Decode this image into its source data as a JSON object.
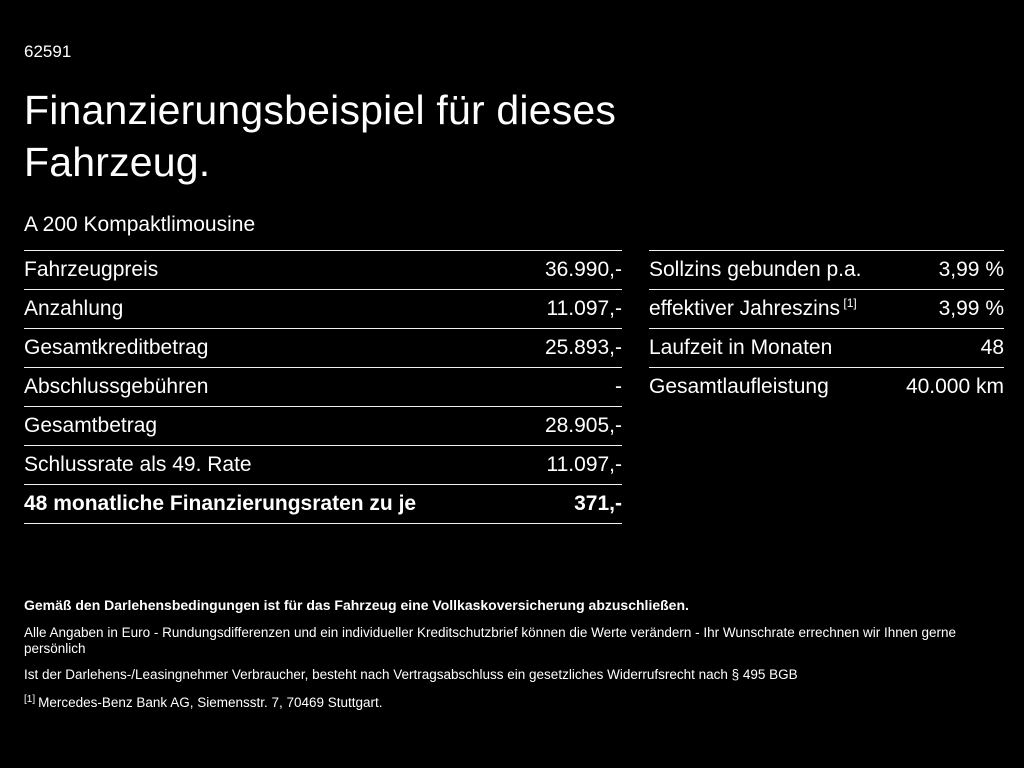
{
  "page": {
    "vehicle_id": "62591",
    "title_line1": "Finanzierungsbeispiel für dieses",
    "title_line2": "Fahrzeug.",
    "subtitle": "A 200 Kompaktlimousine"
  },
  "left_table": {
    "rows": [
      {
        "label": "Fahrzeugpreis",
        "value": "36.990,-"
      },
      {
        "label": "Anzahlung",
        "value": "11.097,-"
      },
      {
        "label": "Gesamtkreditbetrag",
        "value": "25.893,-"
      },
      {
        "label": "Abschlussgebühren",
        "value": "-"
      },
      {
        "label": "Gesamtbetrag",
        "value": "28.905,-"
      },
      {
        "label": "Schlussrate als 49. Rate",
        "value": "11.097,-"
      },
      {
        "label": "48 monatliche Finanzierungsraten zu je",
        "value": "371,-",
        "bold": true
      }
    ]
  },
  "right_table": {
    "rows": [
      {
        "label": "Sollzins gebunden p.a.",
        "value": "3,99 %"
      },
      {
        "label": "effektiver Jahreszins",
        "sup": "[1]",
        "value": "3,99 %"
      },
      {
        "label": "Laufzeit in Monaten",
        "value": "48"
      },
      {
        "label": "Gesamtlaufleistung",
        "value": "40.000 km"
      }
    ]
  },
  "footer": {
    "bold_note": "Gemäß den Darlehensbedingungen ist für das Fahrzeug eine Vollkaskoversicherung abzuschließen.",
    "note1": "Alle Angaben in Euro - Rundungsdifferenzen und ein individueller Kreditschutzbrief können die Werte verändern - Ihr Wunschrate errechnen wir Ihnen gerne persönlich",
    "note2": "Ist der Darlehens-/Leasingnehmer Verbraucher, besteht nach Vertragsabschluss ein gesetzliches Widerrufsrecht nach § 495 BGB",
    "footnote_marker": "[1]",
    "footnote_text": "Mercedes-Benz Bank AG, Siemensstr. 7, 70469 Stuttgart."
  },
  "colors": {
    "background": "#000000",
    "text": "#ffffff",
    "divider": "#f2f2f2"
  }
}
